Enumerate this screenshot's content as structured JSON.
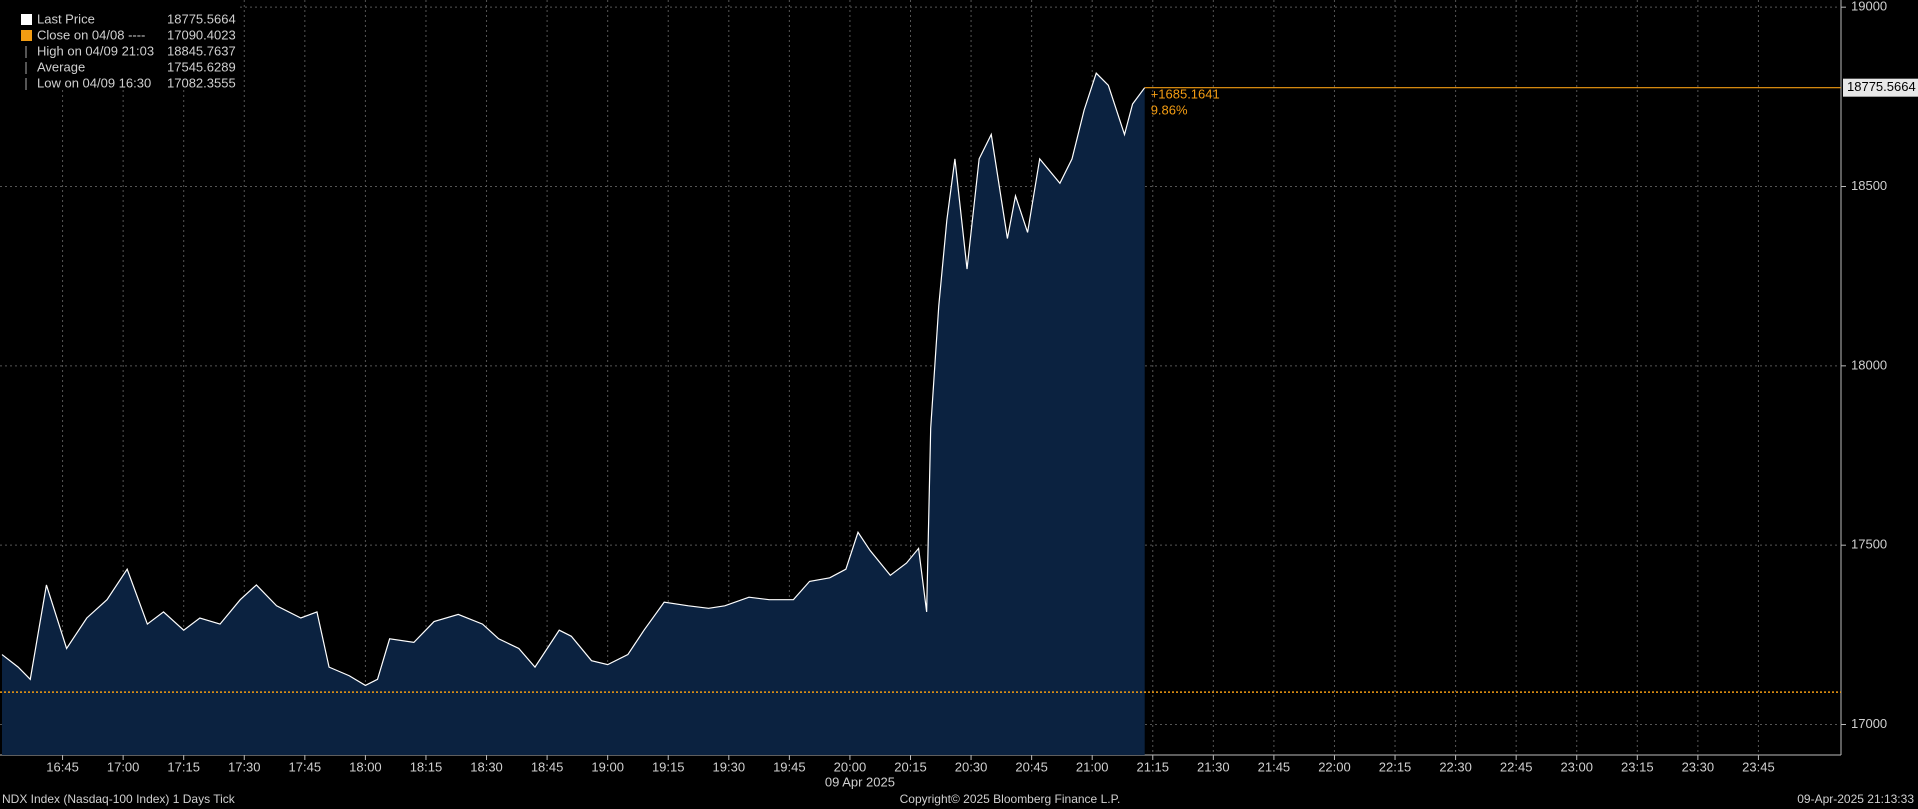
{
  "chart_data": {
    "type": "area",
    "x": [
      "16:30",
      "16:34",
      "16:37",
      "16:41",
      "16:46",
      "16:51",
      "16:56",
      "17:01",
      "17:06",
      "17:10",
      "17:15",
      "17:19",
      "17:24",
      "17:29",
      "17:33",
      "17:38",
      "17:44",
      "17:48",
      "17:51",
      "17:56",
      "18:00",
      "18:03",
      "18:06",
      "18:12",
      "18:17",
      "18:23",
      "18:29",
      "18:33",
      "18:38",
      "18:42",
      "18:48",
      "18:51",
      "18:56",
      "19:00",
      "19:05",
      "19:09",
      "19:14",
      "19:20",
      "19:25",
      "19:29",
      "19:35",
      "19:40",
      "19:46",
      "19:50",
      "19:55",
      "19:59",
      "20:02",
      "20:05",
      "20:10",
      "20:14",
      "20:17",
      "20:19",
      "20:20",
      "20:22",
      "20:24",
      "20:26",
      "20:29",
      "20:32",
      "20:35",
      "20:39",
      "20:41",
      "20:44",
      "20:47",
      "20:52",
      "20:55",
      "20:58",
      "21:01",
      "21:04",
      "21:08",
      "21:10",
      "21:13"
    ],
    "series": [
      {
        "name": "Last Price",
        "color": "#ffffff",
        "fill": "#0b2240",
        "values": [
          17195,
          17160,
          17126,
          17389,
          17212,
          17297,
          17348,
          17433,
          17280,
          17314,
          17263,
          17297,
          17280,
          17348,
          17389,
          17331,
          17297,
          17314,
          17160,
          17136,
          17109,
          17126,
          17239,
          17229,
          17287,
          17307,
          17280,
          17239,
          17212,
          17160,
          17263,
          17246,
          17178,
          17167,
          17195,
          17263,
          17341,
          17331,
          17324,
          17331,
          17355,
          17348,
          17348,
          17399,
          17409,
          17433,
          17536,
          17485,
          17416,
          17450,
          17491,
          17314,
          17826,
          18167,
          18406,
          18577,
          18270,
          18577,
          18645,
          18355,
          18474,
          18372,
          18577,
          18509,
          18577,
          18713,
          18816,
          18782,
          18645,
          18730,
          18775.5664
        ]
      }
    ],
    "legend": [
      {
        "name": "Last Price",
        "value": 18775.5664,
        "color": "#ffffff"
      },
      {
        "name": "Close on 04/08 ----",
        "value": 17090.4023,
        "color": "#f39c12"
      },
      {
        "name": "High on 04/09 21:03",
        "value": 18845.7637
      },
      {
        "name": "Average",
        "value": 17545.6289
      },
      {
        "name": "Low on 04/09 16:30",
        "value": 17082.3555
      }
    ],
    "annotations": {
      "change": "+1685.1641",
      "change_pct": "9.86%"
    },
    "xlim": [
      "16:30",
      "24:00"
    ],
    "xticks": [
      "16:45",
      "17:00",
      "17:15",
      "17:30",
      "17:45",
      "18:00",
      "18:15",
      "18:30",
      "18:45",
      "19:00",
      "19:15",
      "19:30",
      "19:45",
      "20:00",
      "20:15",
      "20:30",
      "20:45",
      "21:00",
      "21:15",
      "21:30",
      "21:45",
      "22:00",
      "22:15",
      "22:30",
      "22:45",
      "23:00",
      "23:15",
      "23:30",
      "23:45"
    ],
    "x_date_label": "09 Apr 2025",
    "ylim": [
      16915,
      19020
    ],
    "yticks": [
      17000,
      17500,
      18000,
      18500,
      19000
    ],
    "grid": true,
    "footer": {
      "left": "NDX Index (Nasdaq-100 Index) 1 Days  Tick",
      "center": "Copyright© 2025 Bloomberg Finance L.P.",
      "right": "09-Apr-2025 21:13:33"
    }
  }
}
